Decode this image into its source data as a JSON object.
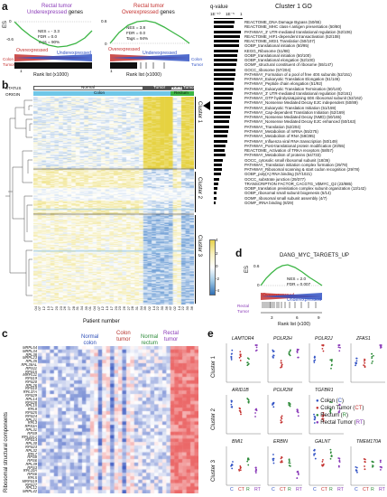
{
  "panel_a": {
    "label": "a",
    "left_plot": {
      "title_line1": "Rectal tumor",
      "title_line2_part1": "Underexpressed",
      "title_line2_part2": " genes",
      "stats": [
        "NES = - 3.3",
        "FDR = 0.0",
        "Tags = 90%"
      ],
      "yaxis": "ES",
      "y_ticks": [
        "0",
        "-0.6"
      ],
      "left_side_label_line1": "Colon",
      "left_side_label_line2": "Tumor",
      "overexpressed": "Overexpressed",
      "underexpressed": "Underexpressed",
      "x_tick_1": "1",
      "xlabel": "Rank list (x1000)"
    },
    "right_plot": {
      "title_line1": "Rectal tumor",
      "title_line2_part1": "Overexpressed",
      "title_line2_part2": " genes",
      "stats": [
        "NES = 3.8",
        "FDR = 0.0",
        "Tags = 94%"
      ],
      "y_ticks": [
        "0.6",
        "0"
      ],
      "right_side_label_line1": "Colon",
      "right_side_label_line2": "Tumor",
      "overexpressed": "Overexpressed",
      "underexpressed": "Underexpressed",
      "x_tick_1": "1",
      "xlabel": "Rank list (x1000)"
    }
  },
  "go_panel": {
    "qvalue_label": "q-value",
    "title": "Cluster 1 GO",
    "axis_ticks": [
      "1E⁻¹⁰",
      "1E⁻⁵",
      "1"
    ],
    "terms": [
      {
        "label": "REACTOME_DNA Damage Bypass (50/65)",
        "q": 0.72
      },
      {
        "label": "REACTOME_MHC class-I antigen presentation (50/80)",
        "q": 0.7
      },
      {
        "label": "PATHWAY_3' UTR-mediated translational regulation (52/106)",
        "q": 0.95
      },
      {
        "label": "REACTOME_HIF1-dependent transactivation (52/108)",
        "q": 0.9
      },
      {
        "label": "REACTOME_MGI1 Translation (50/107)",
        "q": 0.88
      },
      {
        "label": "GOBP_translational initiation (50/95)",
        "q": 0.86
      },
      {
        "label": "KEGG_Ribosome (51/88)",
        "q": 0.84
      },
      {
        "label": "GOBP_translational initiation (50/100)",
        "q": 0.82
      },
      {
        "label": "GOBP_translational elongation (52/100)",
        "q": 0.8
      },
      {
        "label": "GOMF_structural constituent of ribosome (55/147)",
        "q": 0.78
      },
      {
        "label": "GOCC_ribosome (57/204)",
        "q": 0.76
      },
      {
        "label": "PATHWAY_Formation of a pool of free 40S subunits (52/151)",
        "q": 0.74
      },
      {
        "label": "PATHWAY_Eukaryotic Translation Elongation (51/146)",
        "q": 0.72
      },
      {
        "label": "PATHWAY_Peptide chain elongation (51/92)",
        "q": 0.7
      },
      {
        "label": "PATHWAY_Eukaryotic Translation Termination (50/140)",
        "q": 0.68
      },
      {
        "label": "PATHWAY_3' UTR-mediated translational regulation (52/161)",
        "q": 0.66
      },
      {
        "label": "PATHWAY_GTP hydrolysis&joining 60S ribosomal subunit (52/162)",
        "q": 0.64
      },
      {
        "label": "PATHWAY_Nonsense Mediated Decay EJC independent (50/89)",
        "q": 0.62
      },
      {
        "label": "PATHWAY_Eukaryotic Translation Initiation (51/159)",
        "q": 0.6
      },
      {
        "label": "PATHWAY_Cap-dependent Translation Initiation (52/169)",
        "q": 0.58
      },
      {
        "label": "PATHWAY_Nonsense Mediated Decay (NMD) (50/165)",
        "q": 0.56
      },
      {
        "label": "PATHWAY_Nonsense Mediated Decay EJC enhanced (50/163)",
        "q": 0.54
      },
      {
        "label": "PATHWAY_Translation (52/204)",
        "q": 0.52
      },
      {
        "label": "PATHWAY_Metabolism of mRNA (55/275)",
        "q": 0.5
      },
      {
        "label": "PATHWAY_Metabolism of RNA (59/295)",
        "q": 0.48
      },
      {
        "label": "PATHWAY_Influenza viral RNA transcription (50/149)",
        "q": 0.46
      },
      {
        "label": "PATHWAY_Post-translational protein modification (20/55)",
        "q": 0.42
      },
      {
        "label": "REACTOME_Activation of TRKA receptors (58/57)",
        "q": 0.38
      },
      {
        "label": "PATHWAY_Metabolism of proteins (64/733)",
        "q": 0.4
      },
      {
        "label": "GOCC_cytosolic small ribosomal subunit (18/36)",
        "q": 0.3
      },
      {
        "label": "PATHWAY_Translation initiation complex formation (29/78)",
        "q": 0.28
      },
      {
        "label": "PATHWAY_Ribosomal scanning & start codon recognition (29/78)",
        "q": 0.27
      },
      {
        "label": "GOBP_poly(A) RNA binding (57/1021)",
        "q": 0.25
      },
      {
        "label": "GOCC_substrate junction (29/377)",
        "q": 0.2
      },
      {
        "label": "TRANSCRIPTION FACTOR_CACGTG_V$MYC_Q2 (23/885)",
        "q": 0.15
      },
      {
        "label": "GOBP_translation preinitiation complex subunit organization (13/142)",
        "q": 0.14
      },
      {
        "label": "GOBP_ribosomal small subunit biogenesis (5/14)",
        "q": 0.1
      },
      {
        "label": "GOMF_ribosomal small subunit assembly (4/7)",
        "q": 0.08
      },
      {
        "label": "GOMF_rRNA binding (8/29)",
        "q": 0.07
      }
    ]
  },
  "panel_b": {
    "label": "b",
    "status_label": "STATUS",
    "origin_label": "ORIGIN",
    "status_groups": [
      "Normal",
      "Tumor",
      "Normal",
      "Tumor"
    ],
    "origin_groups": [
      "Colon",
      "Rectum"
    ],
    "clusters": [
      "Cluster 1",
      "Cluster 2",
      "Cluster 3"
    ],
    "colorbar_ticks": [
      "4",
      "2",
      "0",
      "-2",
      "-4"
    ],
    "xlabel": "Patient number",
    "patient_numbers": [
      "04",
      "07",
      "12",
      "13",
      "17",
      "20",
      "23",
      "26",
      "27",
      "28",
      "31",
      "34",
      "39",
      "01",
      "04",
      "07",
      "12",
      "13",
      "17",
      "20",
      "23",
      "26",
      "27",
      "28",
      "31",
      "34",
      "39",
      "02",
      "14",
      "22",
      "30",
      "36",
      "42",
      "02",
      "14",
      "22",
      "30",
      "36"
    ]
  },
  "panel_c": {
    "label": "c",
    "col_headers": [
      {
        "line1": "Normal",
        "line2": "colon",
        "color": "#2e4fb8"
      },
      {
        "line1": "Colon",
        "line2": "tumor",
        "color": "#b6332c"
      },
      {
        "line1": "Normal",
        "line2": "rectum",
        "color": "#2e8b3a"
      },
      {
        "line1": "Rectal",
        "line2": "tumor",
        "color": "#8a3ab8"
      }
    ],
    "side_label": "Ribosomal structural components",
    "genes": [
      "MRPL54",
      "MRPL34",
      "RPL38",
      "MRPL23",
      "RPL35",
      "RPL36AL",
      "RPS11",
      "RPS15",
      "MRPL11",
      "RPS19",
      "RPS20",
      "RPL26",
      "RPS10",
      "RPL37A",
      "RPS29",
      "RPL14",
      "RPS28",
      "RPL15",
      "RPL8",
      "RPS25",
      "RPS24",
      "RPL21",
      "RPL3",
      "RPS3A",
      "RPL31",
      "RPS9",
      "RPL22L1",
      "RPS14",
      "RPL30",
      "RPS23",
      "RPL32",
      "RPL7",
      "RPS8",
      "RPS6",
      "RPL39",
      "RPS3",
      "RPL10A",
      "RPS6",
      "RPL5",
      "MRPS19",
      "RPS27",
      "RPL12",
      "MRPL42"
    ]
  },
  "panel_d": {
    "label": "d",
    "title": "DANG_MYC_TARGETS_UP",
    "yaxis": "ES",
    "y_ticks": [
      "0.6",
      "0"
    ],
    "stats": [
      "NES = 2.0",
      "FDR = 0.007"
    ],
    "overexpressed": "Overexpressed",
    "underexpressed": "Underexpressed",
    "side_label_line1": "Rectal",
    "side_label_line2": "Tumor",
    "x_ticks": [
      "3",
      "6",
      "9"
    ],
    "xlabel": "Rank list (x100)"
  },
  "panel_e": {
    "label": "e",
    "cluster_labels": [
      "Cluster 1",
      "Cluster 2",
      "Cluster 3"
    ],
    "genes_row1": [
      "LAMTOR4",
      "POLR2H",
      "POLR2J",
      "ZFAS1"
    ],
    "genes_row2": [
      "ARID1B",
      "POLR2M",
      "TGFBR1"
    ],
    "genes_row3": [
      "BMI1",
      "ERBIN",
      "GALNT",
      "TMEM170A"
    ],
    "x_ticks": [
      "C",
      "CT",
      "R",
      "RT"
    ],
    "legend": [
      {
        "label": "Colon (",
        "abbr": "C",
        "close": ")",
        "color": "#3152c4"
      },
      {
        "label": "Colon Tumor (",
        "abbr": "CT",
        "close": ")",
        "color": "#c4312f"
      },
      {
        "label": "Rectum (",
        "abbr": "R",
        "close": ")",
        "color": "#2e8b3a"
      },
      {
        "label": "Rectal Tumor (",
        "abbr": "RT",
        "close": ")",
        "color": "#8a3ab8"
      }
    ]
  }
}
